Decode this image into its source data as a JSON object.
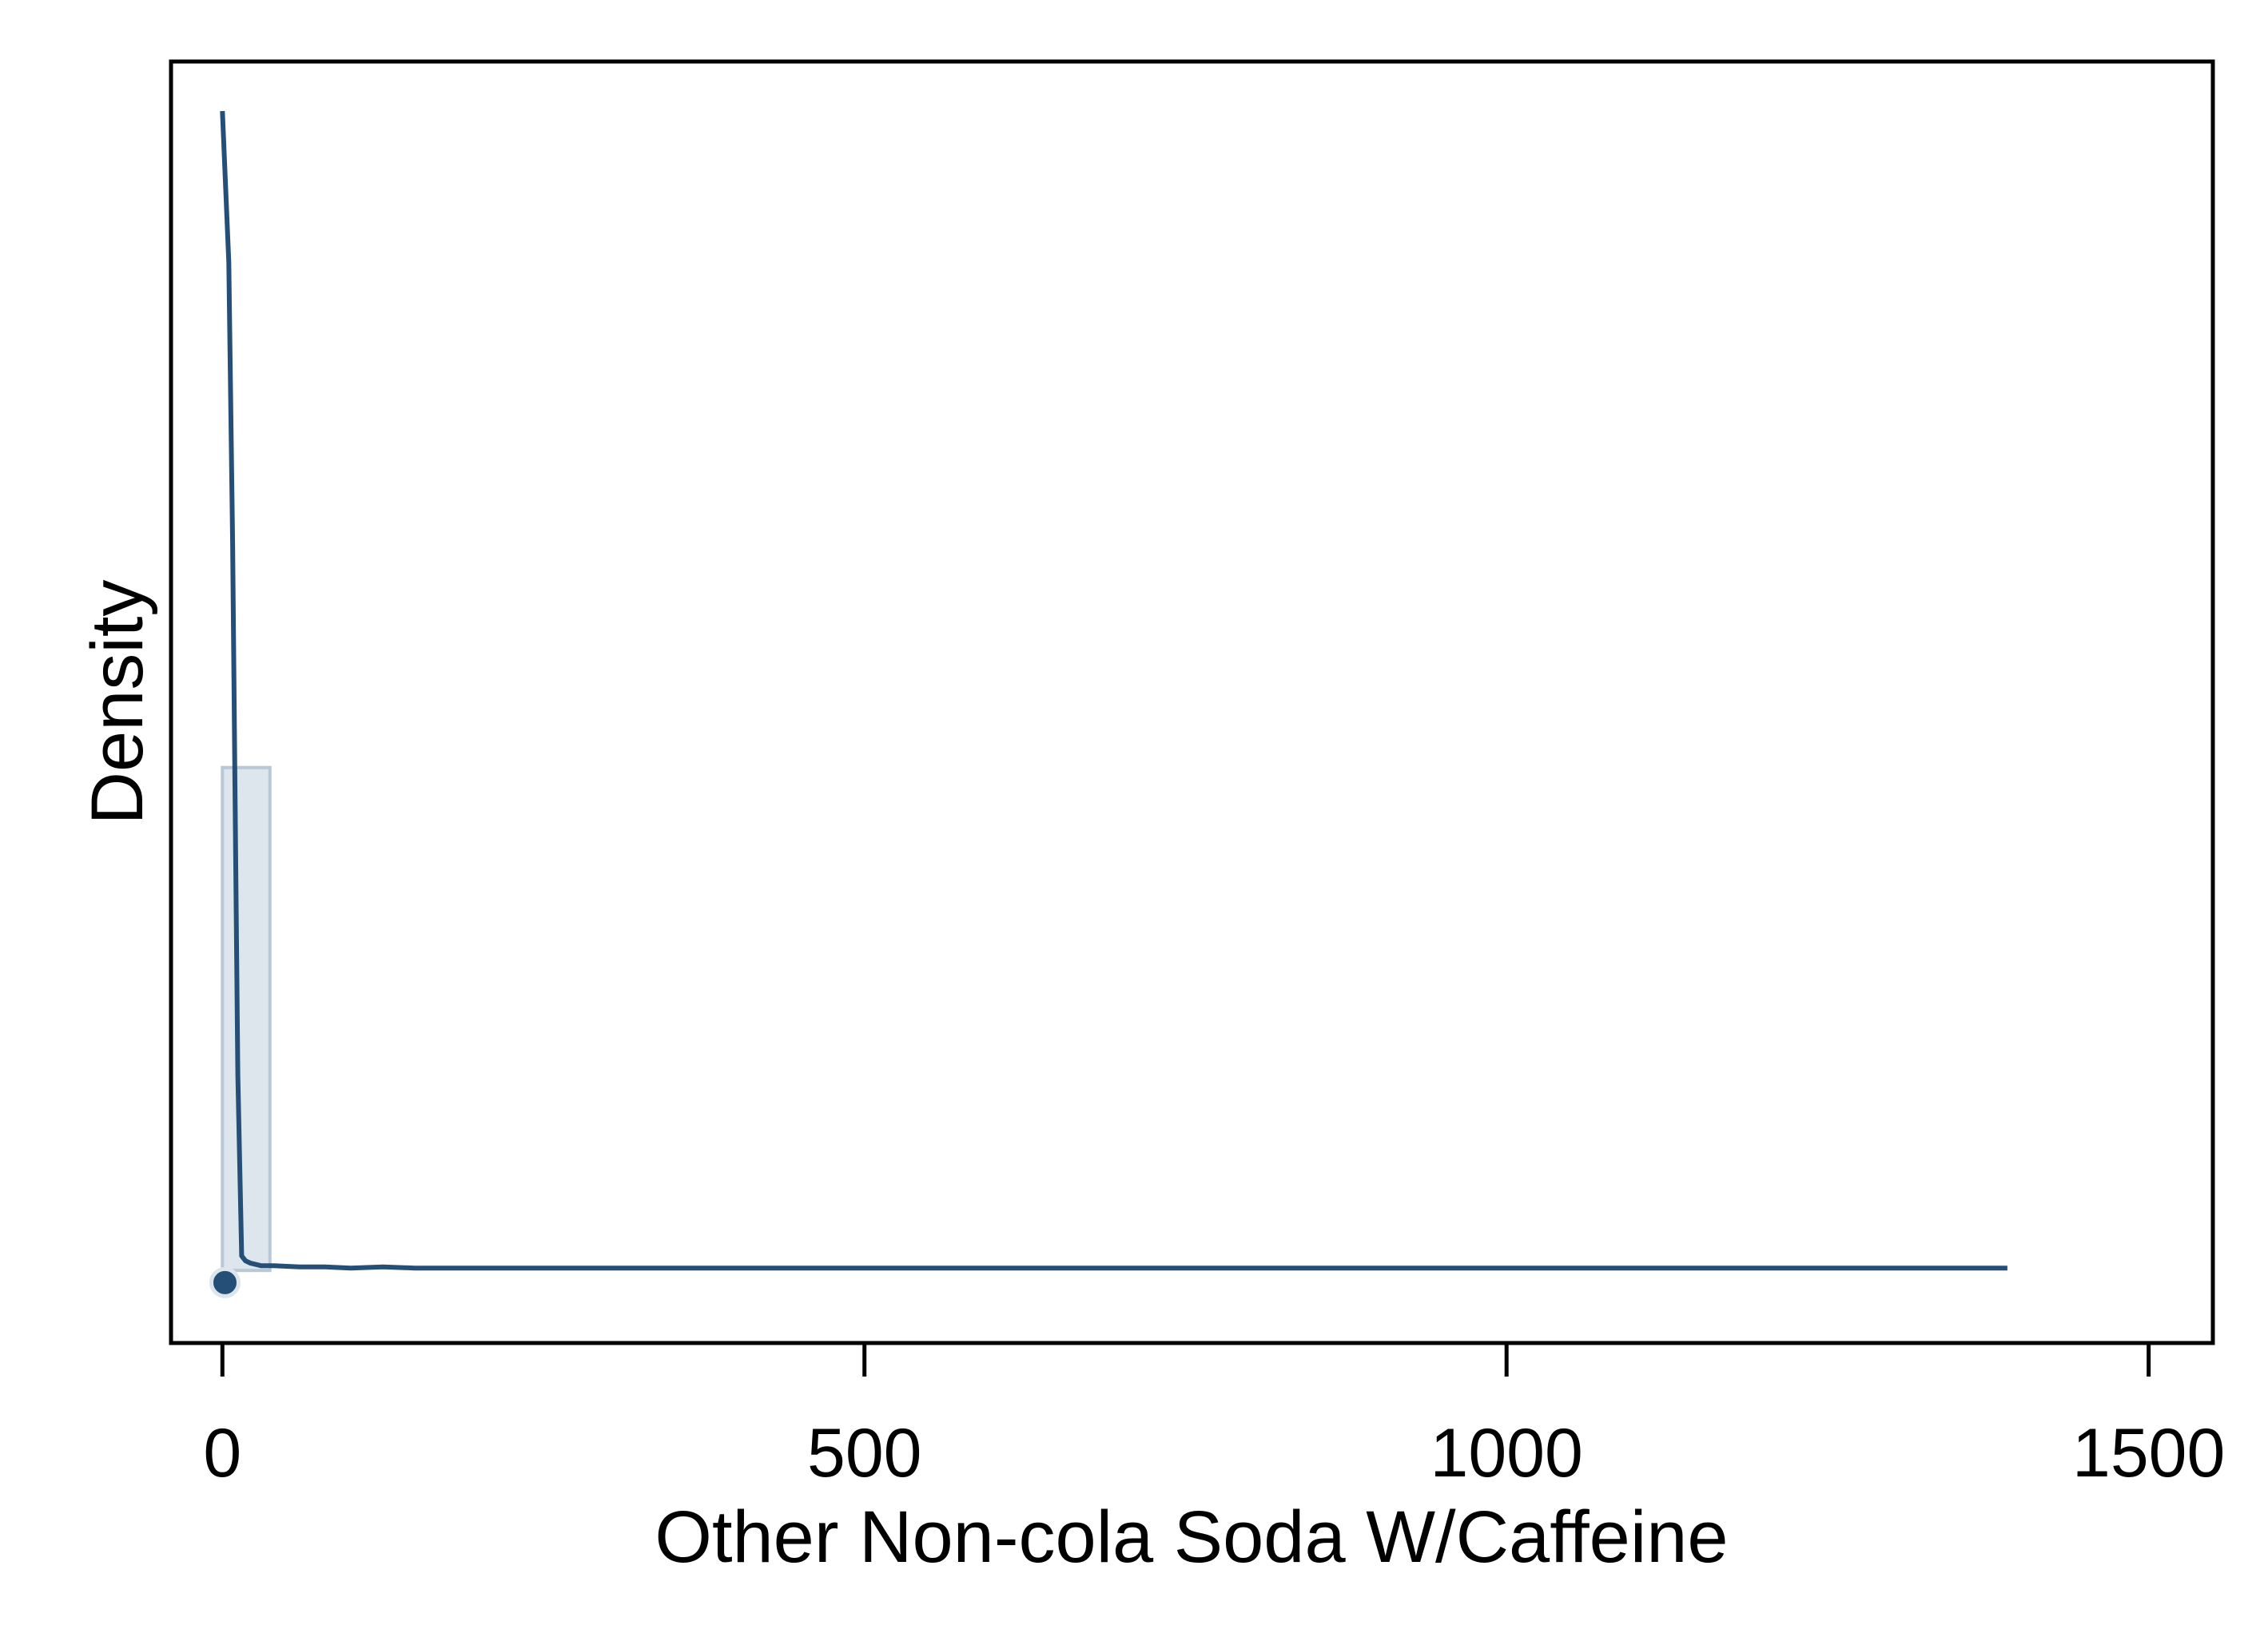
{
  "chart_data": {
    "type": "histogram-density",
    "title": "",
    "xlabel": "Other Non-cola Soda W/Caffeine",
    "ylabel": "Density",
    "xlim": [
      -40,
      1550
    ],
    "x_ticks": [
      0,
      500,
      1000,
      1500
    ],
    "x_tick_labels": [
      "0",
      "500",
      "1000",
      "1500"
    ],
    "y_ticks_shown": false,
    "grid": false,
    "legend": "none",
    "colors": {
      "line": "#264f78",
      "bar_fill": "#dde5ed",
      "bar_stroke": "#b9c8d6",
      "frame": "#000000"
    },
    "density_scale": {
      "ymin": -0.006,
      "ymax": 0.1
    },
    "histogram_bins": [
      {
        "x0": 0,
        "x1": 37,
        "density": 0.0416
      }
    ],
    "kde_line": {
      "x": [
        0,
        5,
        8,
        10,
        12,
        15,
        18,
        22,
        30,
        40,
        60,
        80,
        100,
        125,
        150,
        175,
        200,
        250,
        300,
        350,
        400,
        450,
        500,
        550,
        600,
        650,
        700,
        750,
        780,
        800,
        850,
        900,
        950,
        1000,
        1050,
        1100,
        1150,
        1200,
        1250,
        1300,
        1350,
        1390
      ],
      "y": [
        0.0959,
        0.0834,
        0.0601,
        0.0382,
        0.0162,
        0.0012,
        0.0008,
        0.0006,
        0.0004,
        0.0004,
        0.0003,
        0.0003,
        0.0002,
        0.0003,
        0.0002,
        0.0002,
        0.0002,
        0.0002,
        0.0002,
        0.0002,
        0.0002,
        0.0002,
        0.0002,
        0.0002,
        0.0002,
        0.0002,
        0.0002,
        0.0002,
        0.0002,
        0.0002,
        0.0002,
        0.0002,
        0.0002,
        0.0002,
        0.0002,
        0.0002,
        0.0002,
        0.0002,
        0.0002,
        0.0002,
        0.0002,
        0.0002
      ]
    },
    "points": [
      {
        "x": 2,
        "y": -0.001
      }
    ]
  }
}
